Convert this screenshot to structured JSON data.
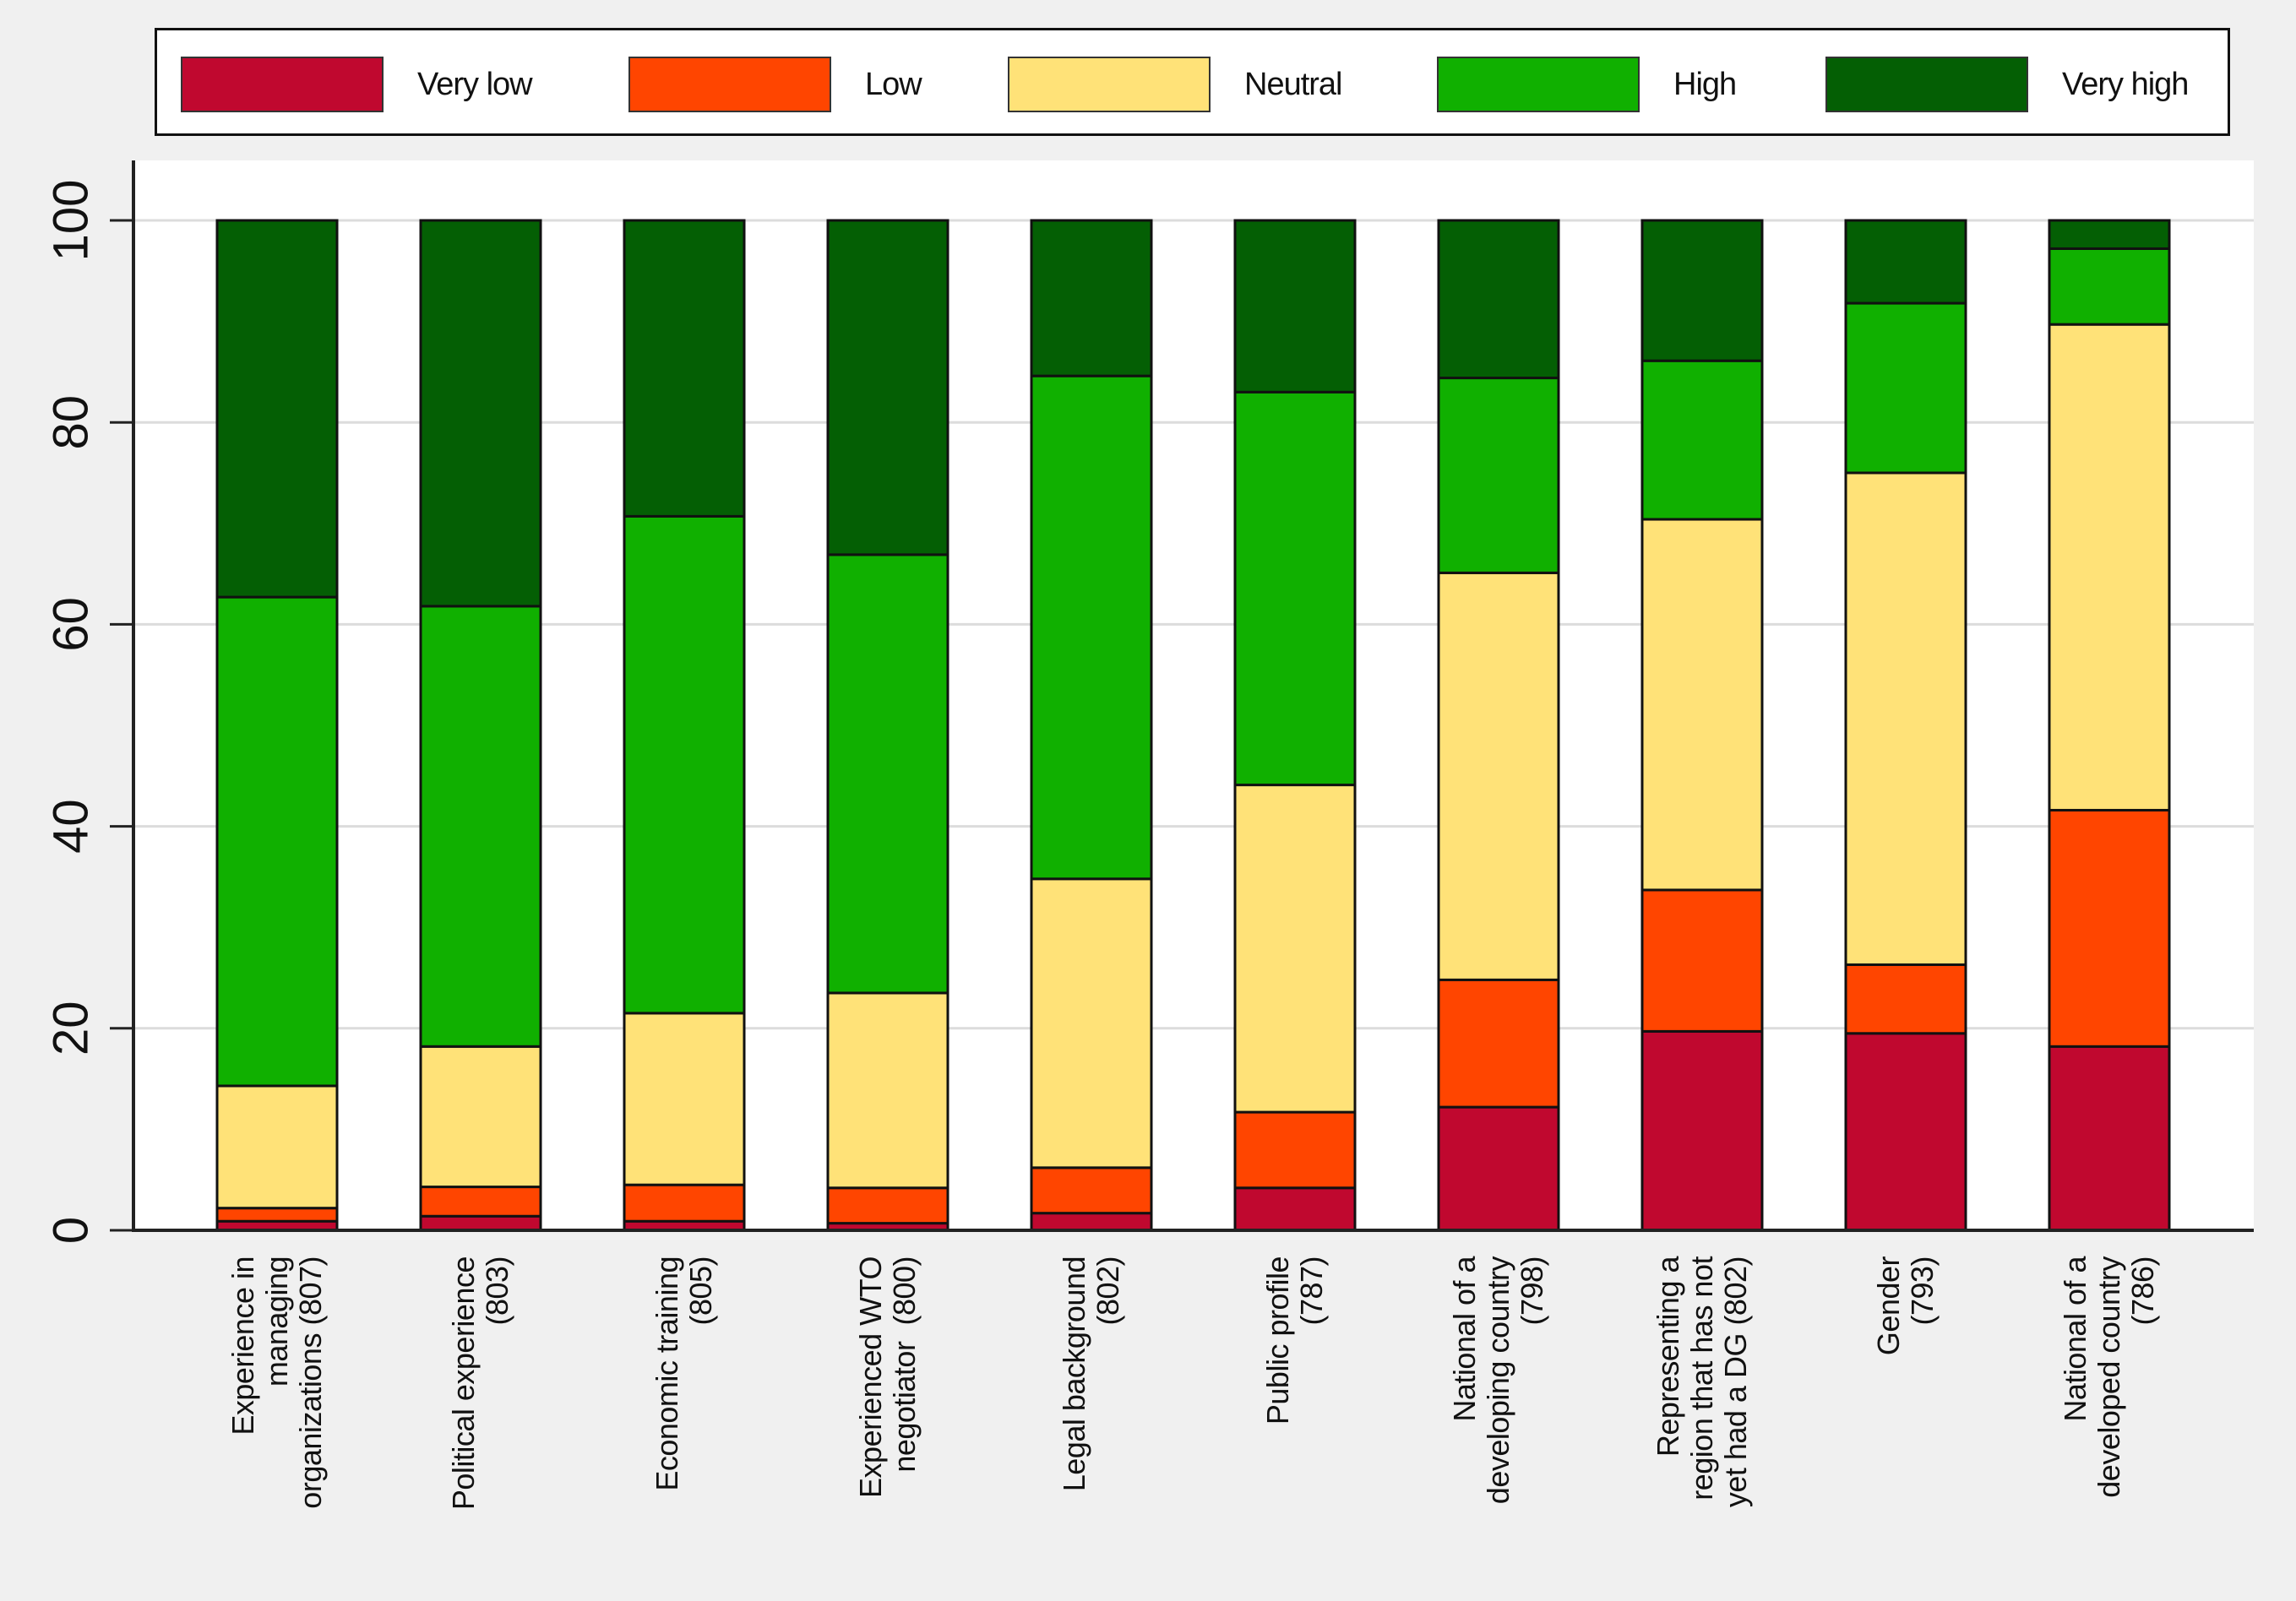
{
  "chart_data": {
    "type": "bar",
    "stacked": true,
    "title": "",
    "xlabel": "",
    "ylabel": "",
    "ylim": [
      0,
      105
    ],
    "yticks": [
      0,
      20,
      40,
      60,
      80,
      100
    ],
    "ytick_labels": [
      "0",
      "20",
      "40",
      "60",
      "80",
      "100"
    ],
    "grid": true,
    "legend_position": "top",
    "categories": [
      "Experience in\nmanaging\norganizations (807)",
      "Political experience\n(803)",
      "Economic training\n(805)",
      "Experienced WTO\nnegotiator  (800)",
      "Legal background\n(802)",
      "Public profile\n(787)",
      "National of a\ndeveloping country\n(798)",
      "Representing a\nregion that has not\nyet had a DG (802)",
      "Gender\n(793)",
      "National of a\ndeveloped country\n(786)"
    ],
    "series": [
      {
        "name": "Very low",
        "color": "#c0082f",
        "values": [
          0.9,
          1.4,
          0.9,
          0.7,
          1.7,
          4.2,
          12.2,
          19.7,
          19.5,
          18.2
        ]
      },
      {
        "name": "Low",
        "color": "#ff4500",
        "values": [
          1.3,
          2.9,
          3.6,
          3.5,
          4.5,
          7.5,
          12.6,
          14.0,
          6.8,
          23.4
        ]
      },
      {
        "name": "Neutral",
        "color": "#ffe278",
        "values": [
          12.1,
          13.9,
          17.0,
          19.3,
          28.6,
          32.4,
          40.3,
          36.7,
          48.7,
          48.1
        ]
      },
      {
        "name": "High",
        "color": "#10b000",
        "values": [
          48.4,
          43.6,
          49.2,
          43.4,
          49.8,
          38.9,
          19.3,
          15.7,
          16.8,
          7.5
        ]
      },
      {
        "name": "Very high",
        "color": "#045f04",
        "values": [
          37.3,
          38.2,
          29.3,
          33.1,
          15.4,
          17.0,
          15.6,
          13.9,
          8.2,
          2.8
        ]
      }
    ]
  }
}
